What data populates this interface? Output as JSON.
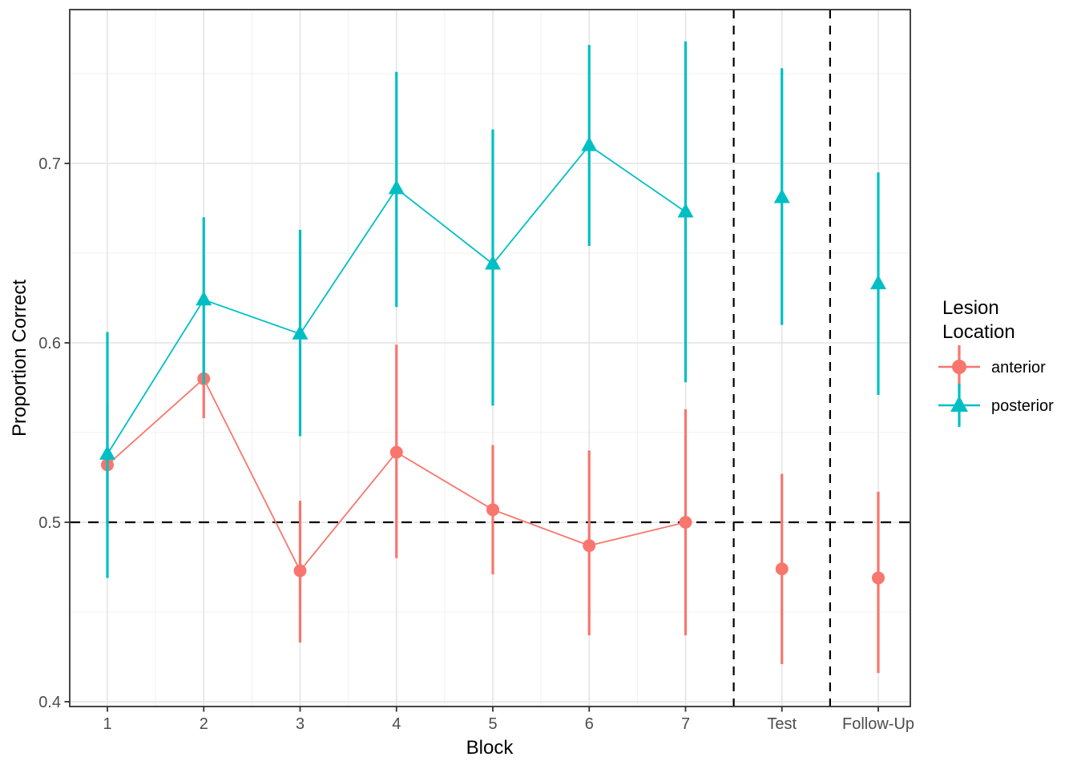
{
  "figure": {
    "background": "#FFFFFF",
    "panel_background": "#FFFFFF",
    "panel_border_color": "#333333"
  },
  "chart_data": {
    "type": "pointrange",
    "title": "",
    "xlabel": "Block",
    "ylabel": "Proportion Correct",
    "categories": [
      "1",
      "2",
      "3",
      "4",
      "5",
      "6",
      "7",
      "Test",
      "Follow-Up"
    ],
    "y_tick_labels": [
      "0.4",
      "0.5",
      "0.6",
      "0.7"
    ],
    "y_tick_values": [
      0.4,
      0.5,
      0.6,
      0.7
    ],
    "y_minor_values": [
      0.45,
      0.55,
      0.65,
      0.75
    ],
    "ylim": [
      0.397,
      0.786
    ],
    "grid": {
      "show_major": true,
      "show_minor": true,
      "major_color": "#E4E4E4",
      "minor_color": "#F0F0F0"
    },
    "axis_text_color": "#4D4D4D",
    "axis_title_color": "#000000",
    "series": [
      {
        "name": "anterior",
        "color": "#F8766D",
        "marker": "circle",
        "values": [
          0.532,
          0.58,
          0.473,
          0.539,
          0.507,
          0.487,
          0.5,
          0.474,
          0.469
        ],
        "lower": [
          0.498,
          0.558,
          0.433,
          0.48,
          0.471,
          0.437,
          0.437,
          0.421,
          0.416
        ],
        "upper": [
          0.566,
          0.602,
          0.512,
          0.599,
          0.543,
          0.54,
          0.563,
          0.527,
          0.517
        ]
      },
      {
        "name": "posterior",
        "color": "#00BFC4",
        "marker": "triangle",
        "values": [
          0.538,
          0.624,
          0.605,
          0.686,
          0.644,
          0.71,
          0.673,
          0.681,
          0.633
        ],
        "lower": [
          0.469,
          0.577,
          0.548,
          0.62,
          0.565,
          0.654,
          0.578,
          0.61,
          0.571
        ],
        "upper": [
          0.606,
          0.67,
          0.663,
          0.751,
          0.719,
          0.766,
          0.768,
          0.753,
          0.695
        ]
      }
    ],
    "connect_categories": 7,
    "reference_lines": {
      "horizontal": [
        {
          "value": 0.5,
          "style": "dashed",
          "color": "#000000"
        }
      ],
      "vertical": [
        {
          "x_between": [
            "7",
            "Test"
          ],
          "style": "dashed",
          "color": "#000000"
        },
        {
          "x_between": [
            "Test",
            "Follow-Up"
          ],
          "style": "dashed",
          "color": "#000000"
        }
      ]
    },
    "legend": {
      "position": "right",
      "title_lines": [
        "Lesion",
        "Location"
      ],
      "items": [
        {
          "label": "anterior"
        },
        {
          "label": "posterior"
        }
      ]
    }
  }
}
